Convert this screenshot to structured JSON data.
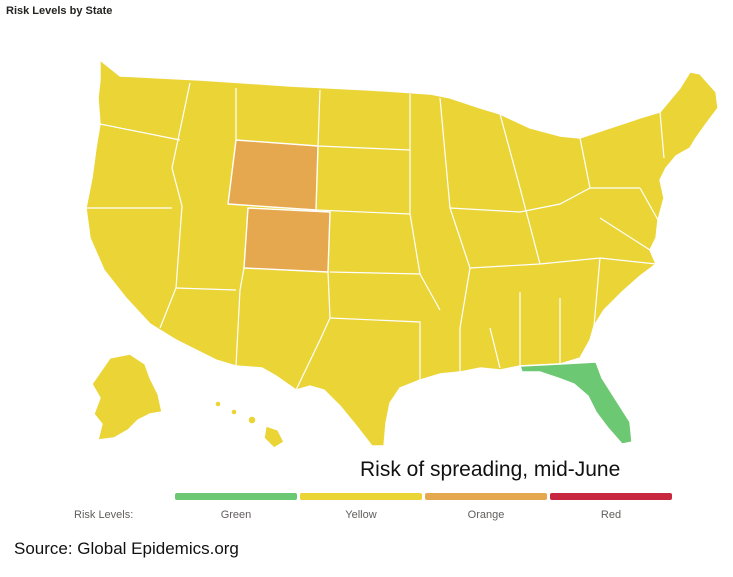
{
  "title": "Risk Levels by State",
  "caption": "Risk of spreading, mid-June",
  "legend": {
    "label": "Risk Levels:",
    "items": [
      {
        "name": "Green",
        "color": "#6cc872"
      },
      {
        "name": "Yellow",
        "color": "#ead436"
      },
      {
        "name": "Orange",
        "color": "#e6a84f"
      },
      {
        "name": "Red",
        "color": "#c8283f"
      }
    ]
  },
  "source": "Source:  Global Epidemics.org",
  "state_risk": {
    "Wyoming": "Orange",
    "Colorado": "Orange",
    "Florida": "Green",
    "all_other_states": "Yellow"
  }
}
